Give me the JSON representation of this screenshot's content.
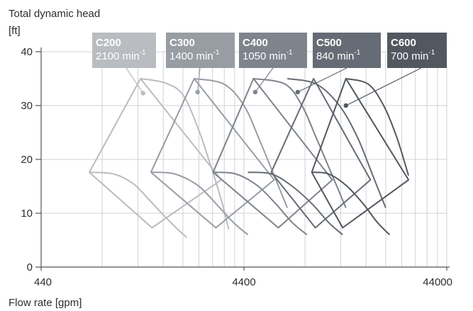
{
  "chart_data": {
    "type": "line",
    "ylabel_line1": "Total dynamic head",
    "ylabel_line2": "[ft]",
    "xlabel": "Flow rate [gpm]",
    "x_scale": "log",
    "xlim": [
      440,
      44000
    ],
    "ylim": [
      0,
      40
    ],
    "x_ticks": [
      {
        "value": 440,
        "label": "440"
      },
      {
        "value": 4400,
        "label": "4400"
      },
      {
        "value": 44000,
        "label": "44000"
      }
    ],
    "y_ticks": [
      {
        "value": 0,
        "label": "0"
      },
      {
        "value": 10,
        "label": "10"
      },
      {
        "value": 20,
        "label": "20"
      },
      {
        "value": 30,
        "label": "30"
      },
      {
        "value": 40,
        "label": "40"
      }
    ],
    "grid": {
      "x_minor": true,
      "y_major": true
    },
    "series": [
      {
        "name": "C200",
        "speed": "2100 min",
        "speed_unit_sup": "-1",
        "color": "#b9bcc0",
        "label_point": [
          1400,
          32.3
        ],
        "boundary": [
          [
            760,
            17.6
          ],
          [
            1360,
            35
          ],
          [
            3400,
            16.2
          ],
          [
            1550,
            7.3
          ],
          [
            760,
            17.6
          ]
        ],
        "top_curve": [
          [
            1360,
            35
          ],
          [
            1800,
            34.2
          ],
          [
            2200,
            32
          ],
          [
            2600,
            26
          ],
          [
            2950,
            20
          ],
          [
            3400,
            12.5
          ],
          [
            3700,
            7
          ]
        ],
        "bottom_curve": [
          [
            760,
            17.6
          ],
          [
            1000,
            17.3
          ],
          [
            1250,
            15.5
          ],
          [
            1500,
            12.5
          ],
          [
            1750,
            9.8
          ],
          [
            2050,
            7.2
          ],
          [
            2300,
            5.5
          ]
        ]
      },
      {
        "name": "C300",
        "speed": "1400 min",
        "speed_unit_sup": "-1",
        "color": "#989da4",
        "label_point": [
          2600,
          32.5
        ],
        "boundary": [
          [
            1530,
            17.6
          ],
          [
            2500,
            35
          ],
          [
            6200,
            16.2
          ],
          [
            3200,
            7.3
          ],
          [
            1530,
            17.6
          ]
        ],
        "top_curve": [
          [
            2500,
            35
          ],
          [
            3500,
            34
          ],
          [
            4400,
            30
          ],
          [
            5200,
            24
          ],
          [
            6200,
            17
          ],
          [
            7200,
            11
          ]
        ],
        "bottom_curve": [
          [
            1530,
            17.6
          ],
          [
            2000,
            17.3
          ],
          [
            2600,
            15.2
          ],
          [
            3200,
            11.8
          ],
          [
            3900,
            8.3
          ],
          [
            4600,
            6
          ]
        ]
      },
      {
        "name": "C400",
        "speed": "1050 min",
        "speed_unit_sup": "-1",
        "color": "#7e848c",
        "label_point": [
          5000,
          32.5
        ],
        "boundary": [
          [
            3100,
            17.6
          ],
          [
            4900,
            35
          ],
          [
            12000,
            16.2
          ],
          [
            6500,
            7.3
          ],
          [
            3100,
            17.6
          ]
        ],
        "top_curve": [
          [
            4900,
            35
          ],
          [
            7000,
            34
          ],
          [
            8500,
            30
          ],
          [
            10000,
            24
          ],
          [
            12000,
            17
          ],
          [
            14000,
            11
          ]
        ],
        "bottom_curve": [
          [
            3100,
            17.6
          ],
          [
            4000,
            17.3
          ],
          [
            5100,
            15.2
          ],
          [
            6300,
            11.8
          ],
          [
            7600,
            8.3
          ],
          [
            9000,
            6
          ]
        ]
      },
      {
        "name": "C500",
        "speed": "840 min",
        "speed_unit_sup": "-1",
        "color": "#666c75",
        "label_point": [
          8100,
          32.5
        ],
        "boundary": [
          [
            6000,
            17.6
          ],
          [
            9700,
            35
          ],
          [
            18500,
            16.2
          ],
          [
            9900,
            7.3
          ],
          [
            6000,
            17.6
          ]
        ],
        "top_curve": [
          [
            7200,
            35
          ],
          [
            10000,
            34
          ],
          [
            13000,
            30
          ],
          [
            16000,
            24
          ],
          [
            19000,
            17
          ],
          [
            22000,
            11
          ]
        ],
        "bottom_curve": [
          [
            4600,
            17.6
          ],
          [
            6000,
            17.3
          ],
          [
            7500,
            15.2
          ],
          [
            9500,
            11.8
          ],
          [
            11500,
            8.3
          ],
          [
            13500,
            6
          ]
        ]
      },
      {
        "name": "C600",
        "speed": "700 min",
        "speed_unit_sup": "-1",
        "color": "#52585f",
        "label_point": [
          14000,
          30
        ],
        "boundary": [
          [
            9500,
            17.6
          ],
          [
            14000,
            35
          ],
          [
            28500,
            16.2
          ],
          [
            13500,
            7.3
          ],
          [
            9500,
            17.6
          ]
        ],
        "top_curve": [
          [
            14000,
            35
          ],
          [
            18000,
            34
          ],
          [
            21500,
            30
          ],
          [
            25000,
            24
          ],
          [
            28500,
            17
          ]
        ],
        "bottom_curve": [
          [
            9500,
            17.6
          ],
          [
            11500,
            17.3
          ],
          [
            14000,
            15.2
          ],
          [
            17000,
            11.8
          ],
          [
            20000,
            8.3
          ],
          [
            23000,
            6
          ]
        ]
      }
    ]
  }
}
